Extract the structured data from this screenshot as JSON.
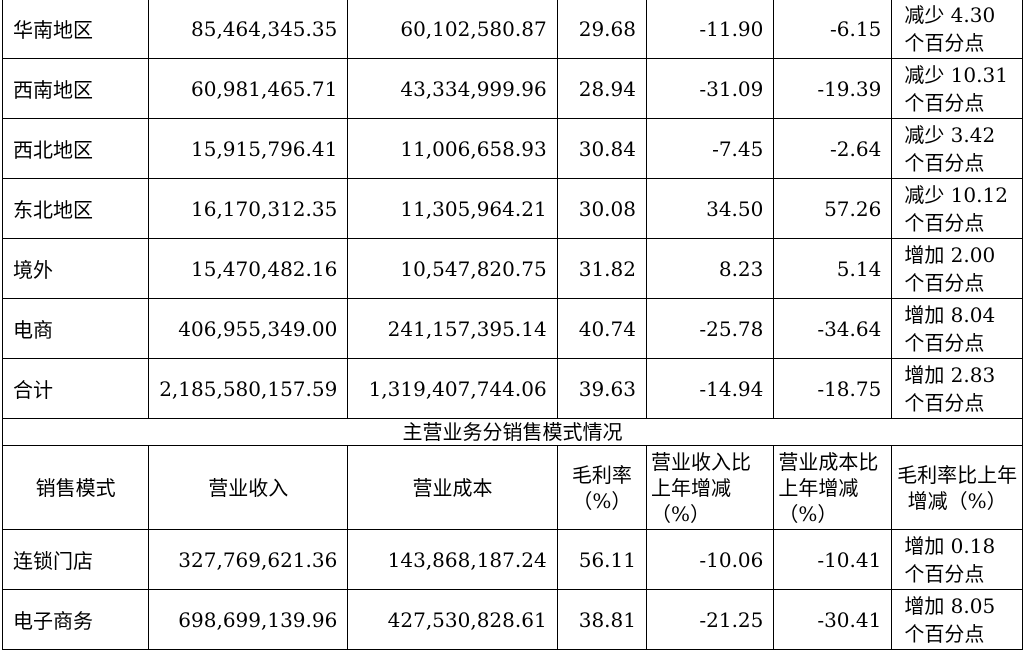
{
  "region_rows": [
    {
      "name": "华南地区",
      "revenue": "85,464,345.35",
      "cost": "60,102,580.87",
      "margin": "29.68",
      "rev_yoy": "-11.90",
      "cost_yoy": "-6.15",
      "margin_change": "减少 4.30 个百分点"
    },
    {
      "name": "西南地区",
      "revenue": "60,981,465.71",
      "cost": "43,334,999.96",
      "margin": "28.94",
      "rev_yoy": "-31.09",
      "cost_yoy": "-19.39",
      "margin_change": "减少 10.31 个百分点"
    },
    {
      "name": "西北地区",
      "revenue": "15,915,796.41",
      "cost": "11,006,658.93",
      "margin": "30.84",
      "rev_yoy": "-7.45",
      "cost_yoy": "-2.64",
      "margin_change": "减少 3.42 个百分点"
    },
    {
      "name": "东北地区",
      "revenue": "16,170,312.35",
      "cost": "11,305,964.21",
      "margin": "30.08",
      "rev_yoy": "34.50",
      "cost_yoy": "57.26",
      "margin_change": "减少 10.12 个百分点"
    },
    {
      "name": "境外",
      "revenue": "15,470,482.16",
      "cost": "10,547,820.75",
      "margin": "31.82",
      "rev_yoy": "8.23",
      "cost_yoy": "5.14",
      "margin_change": "增加 2.00 个百分点"
    },
    {
      "name": "电商",
      "revenue": "406,955,349.00",
      "cost": "241,157,395.14",
      "margin": "40.74",
      "rev_yoy": "-25.78",
      "cost_yoy": "-34.64",
      "margin_change": "增加 8.04 个百分点"
    },
    {
      "name": "合计",
      "revenue": "2,185,580,157.59",
      "cost": "1,319,407,744.06",
      "margin": "39.63",
      "rev_yoy": "-14.94",
      "cost_yoy": "-18.75",
      "margin_change": "增加 2.83 个百分点"
    }
  ],
  "section_title": "主营业务分销售模式情况",
  "headers": {
    "mode": "销售模式",
    "revenue": "营业收入",
    "cost": "营业成本",
    "margin": "毛利率（%）",
    "rev_yoy": "营业收入比上年增减（%）",
    "cost_yoy": "营业成本比上年增减（%）",
    "margin_change": "毛利率比上年增减（%）"
  },
  "mode_rows": [
    {
      "name": "连锁门店",
      "revenue": "327,769,621.36",
      "cost": "143,868,187.24",
      "margin": "56.11",
      "rev_yoy": "-10.06",
      "cost_yoy": "-10.41",
      "margin_change": "增加 0.18 个百分点"
    },
    {
      "name": "电子商务",
      "revenue": "698,699,139.96",
      "cost": "427,530,828.61",
      "margin": "38.81",
      "rev_yoy": "-21.25",
      "cost_yoy": "-30.41",
      "margin_change": "增加 8.05 个百分点"
    }
  ]
}
